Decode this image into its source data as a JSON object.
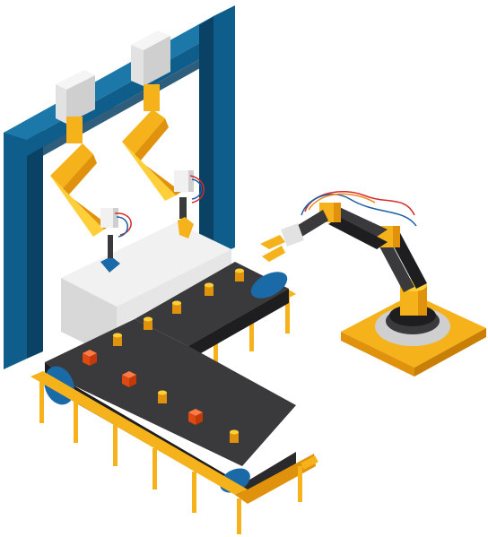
{
  "colors": {
    "frame_blue": "#0f5d8a",
    "frame_blue_dark": "#0a4266",
    "frame_blue_light": "#1b78a8",
    "arm_yellow": "#f5b21a",
    "arm_yellow_dark": "#e0920c",
    "arm_yellow_light": "#ffcf3a",
    "belt_dark": "#3a3a3c",
    "belt_mid": "#4b4b4e",
    "belt_edge": "#1e1e20",
    "roller_blue": "#1b6aa8",
    "box_light": "#f1f1f1",
    "box_mid": "#e2e2e2",
    "box_dark": "#cfcfcf",
    "item_orange": "#f0531c",
    "wire_red": "#d92b2b",
    "wire_blue": "#1d5fa5",
    "wire_orange": "#f08a1c"
  },
  "scene": {
    "description_icons": [
      "gantry-frame-icon",
      "robotic-arm-icon",
      "conveyor-belt-icon"
    ]
  }
}
